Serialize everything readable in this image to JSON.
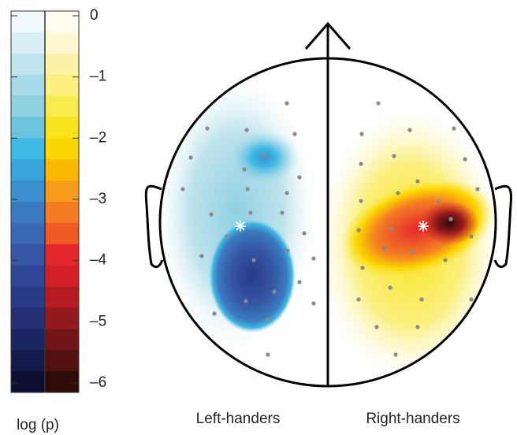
{
  "chart_data": {
    "type": "topomap",
    "colorbar_label": "log (p)",
    "panels": [
      "Left-handers",
      "Right-handers"
    ],
    "ylim": [
      -6,
      0
    ],
    "yticks": [
      0,
      {
        "value": -1,
        "label": "–1"
      },
      {
        "value": -2,
        "label": "–2"
      },
      {
        "value": -3,
        "label": "–3"
      },
      {
        "value": -4,
        "label": "–4"
      },
      {
        "value": -5,
        "label": "–5"
      },
      {
        "value": -6,
        "label": "–6"
      }
    ],
    "cold_colors": [
      "#f2f9fb",
      "#d8eff5",
      "#c0e5ee",
      "#a8dbe7",
      "#8fd1e1",
      "#6dc5dc",
      "#3eb8e4",
      "#37a5db",
      "#3a8fd0",
      "#3b7bc1",
      "#3a68b3",
      "#3557a4",
      "#2f4697",
      "#293a86",
      "#222f74",
      "#1b2562",
      "#141a4c",
      "#0b1030"
    ],
    "hot_colors": [
      "#fffdf2",
      "#fdf8d2",
      "#fcf3a8",
      "#fbef7e",
      "#f9ea4f",
      "#f8e41b",
      "#fbd700",
      "#fbb800",
      "#f99c1c",
      "#f47d23",
      "#ee5a24",
      "#e4282c",
      "#d51f26",
      "#b51c22",
      "#931a1d",
      "#731518",
      "#521010",
      "#2e0a09"
    ]
  }
}
